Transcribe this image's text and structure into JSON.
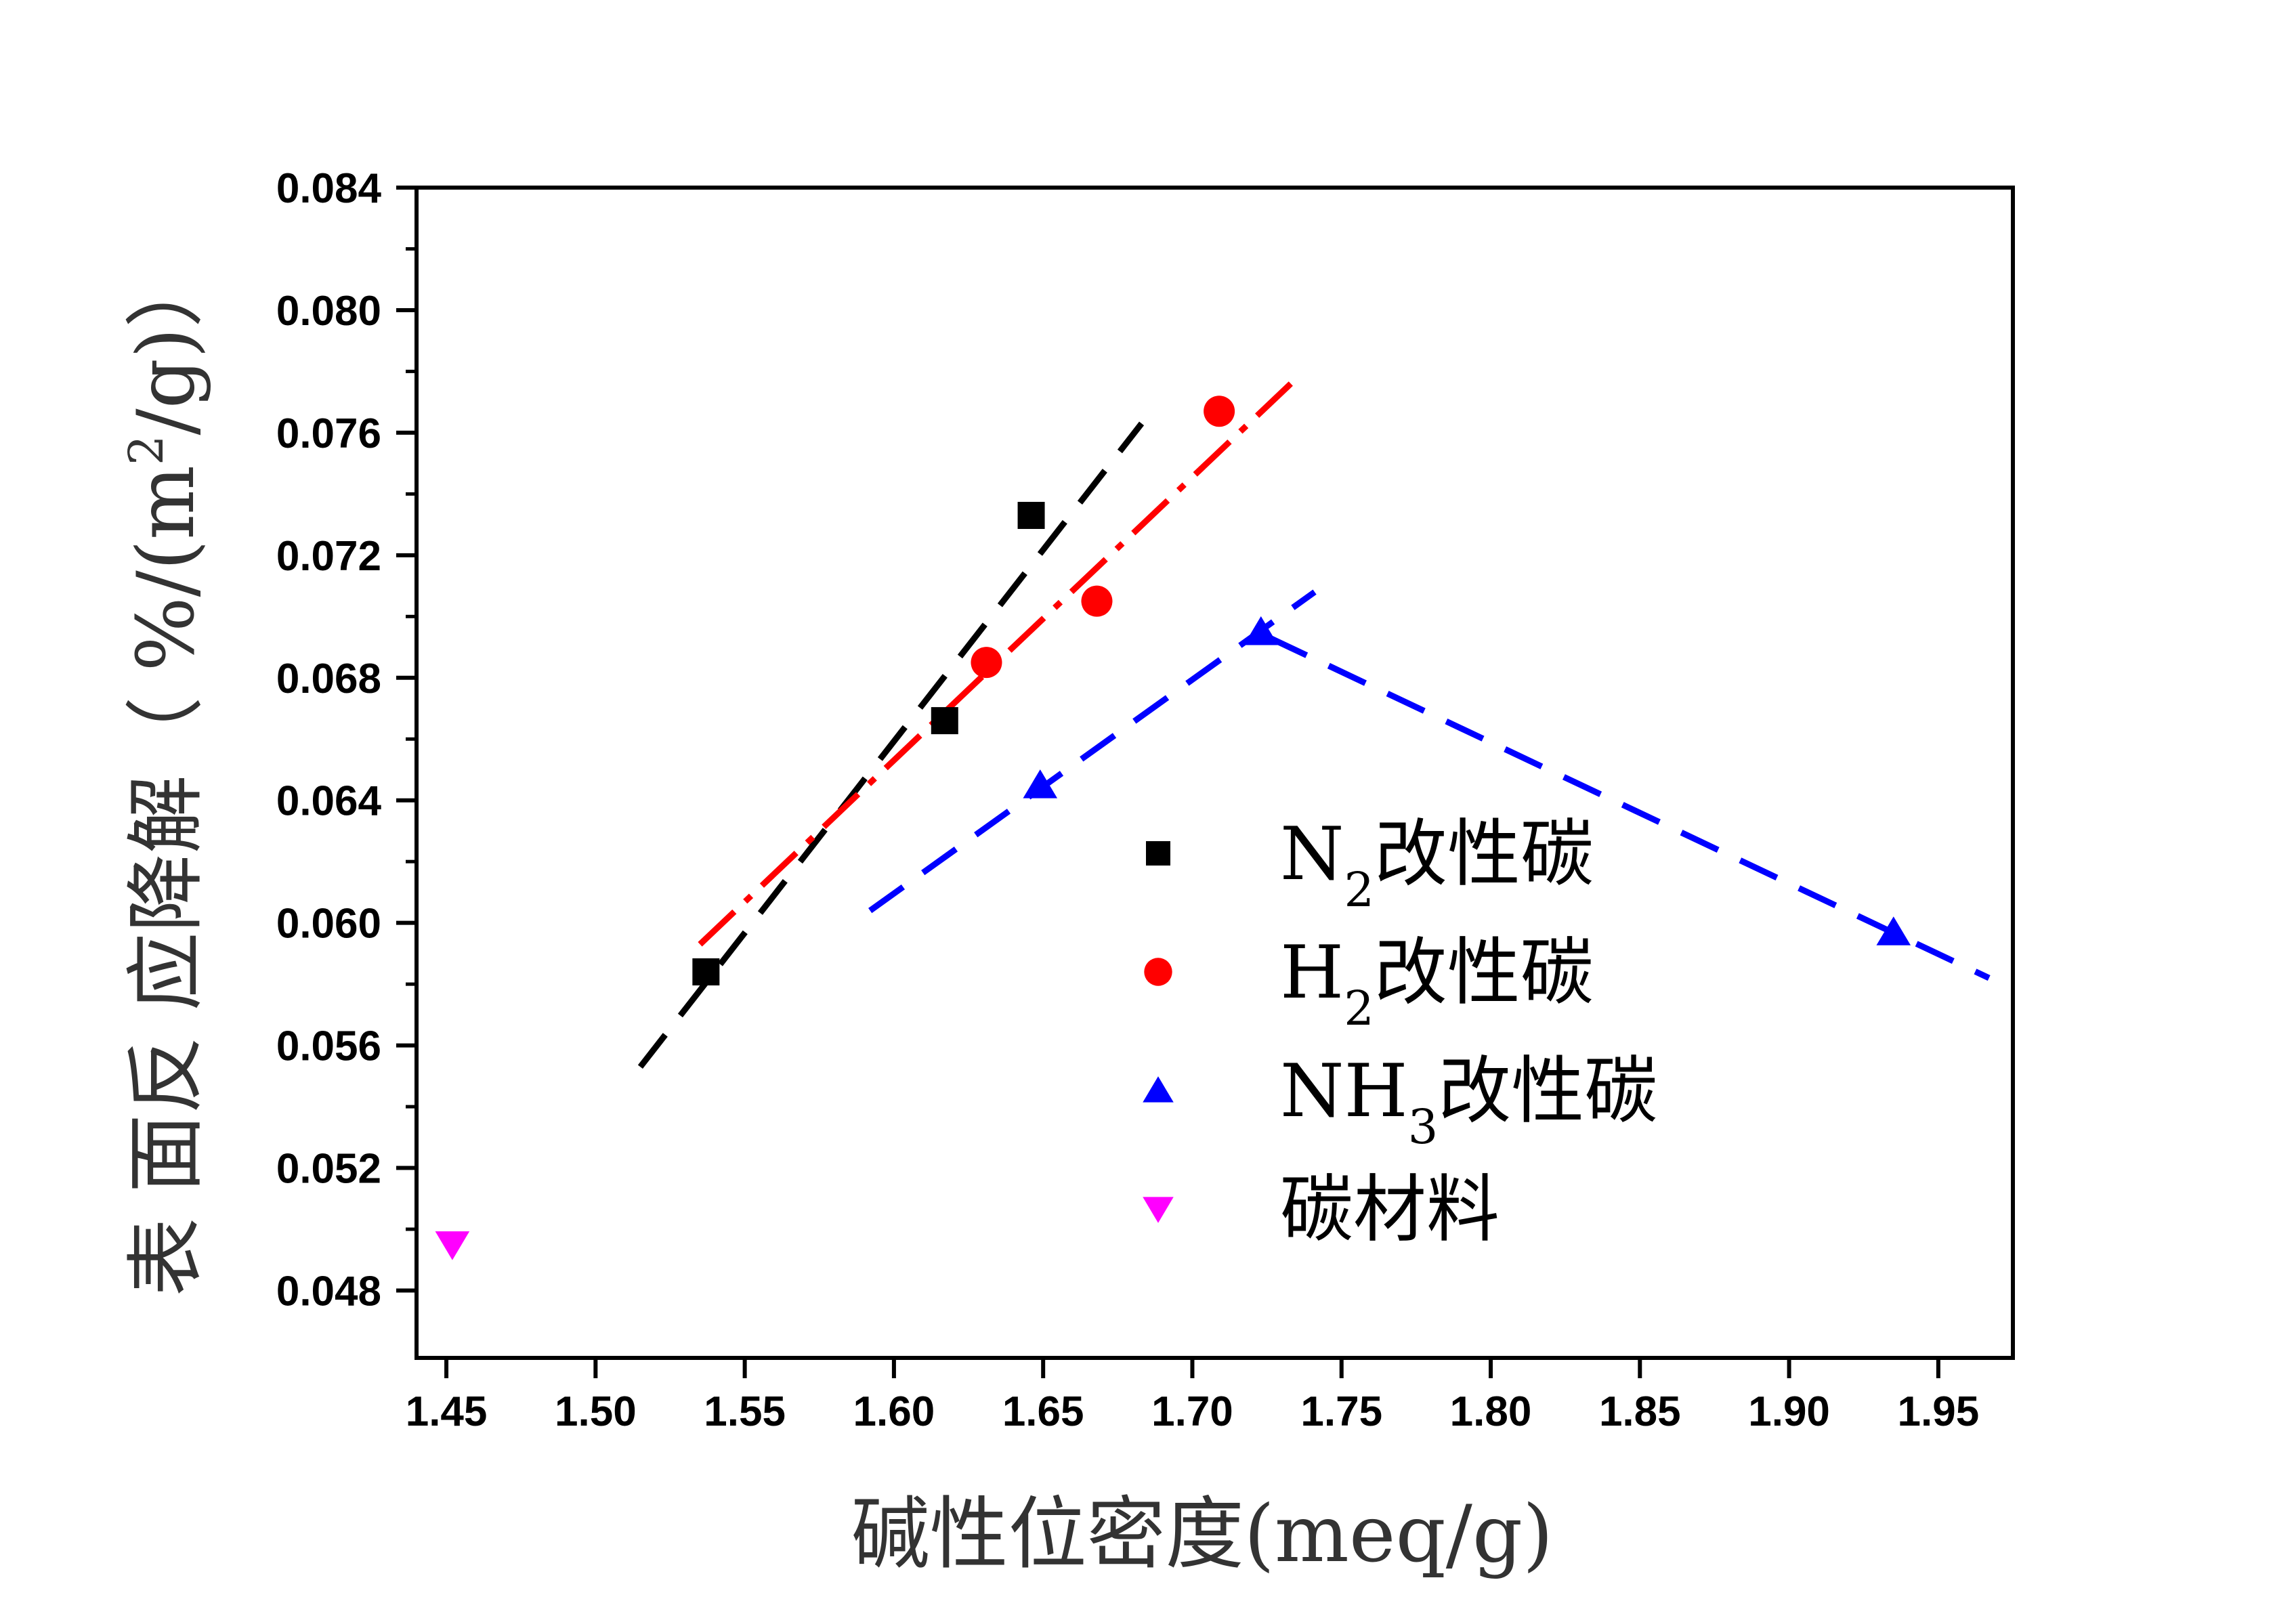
{
  "chart_data": {
    "type": "scatter",
    "xlabel": "碱性位密度(meq/g)",
    "ylabel": "表 面反 应降解（ %/(m²/g)）",
    "ylabel_parts": {
      "main": "表 面反 应降解（ %/(m",
      "sup": "2",
      "tail": "/g)）"
    },
    "xlim": [
      1.44,
      1.975
    ],
    "ylim": [
      0.0458,
      0.084
    ],
    "xticks": [
      1.45,
      1.5,
      1.55,
      1.6,
      1.65,
      1.7,
      1.75,
      1.8,
      1.85,
      1.9,
      1.95
    ],
    "xtick_labels": [
      "1.45",
      "1.50",
      "1.55",
      "1.60",
      "1.65",
      "1.70",
      "1.75",
      "1.80",
      "1.85",
      "1.90",
      "1.95"
    ],
    "yticks": [
      0.048,
      0.052,
      0.056,
      0.06,
      0.064,
      0.068,
      0.072,
      0.076,
      0.08,
      0.084
    ],
    "ytick_labels": [
      "0.048",
      "0.052",
      "0.056",
      "0.060",
      "0.064",
      "0.068",
      "0.072",
      "0.076",
      "0.080",
      "0.084"
    ],
    "legend_position": "center-right",
    "series": [
      {
        "name": "N2改性碳",
        "label_main": "N",
        "label_sub": "2",
        "label_tail": "改性碳",
        "marker": "square",
        "color": "#000000",
        "points": [
          [
            1.537,
            0.0584
          ],
          [
            1.617,
            0.0666
          ],
          [
            1.646,
            0.0733
          ]
        ]
      },
      {
        "name": "H2改性碳",
        "label_main": "H",
        "label_sub": "2",
        "label_tail": "改性碳",
        "marker": "circle",
        "color": "#ff0000",
        "points": [
          [
            1.631,
            0.0685
          ],
          [
            1.668,
            0.0705
          ],
          [
            1.709,
            0.0767
          ]
        ]
      },
      {
        "name": "NH3改性碳",
        "label_main": "NH",
        "label_sub": "3",
        "label_tail": "改性碳",
        "marker": "triangle-up",
        "color": "#0000ff",
        "points": [
          [
            1.649,
            0.0645
          ],
          [
            1.723,
            0.0695
          ],
          [
            1.935,
            0.0597
          ]
        ]
      },
      {
        "name": "碳材料",
        "label_main": "碳材料",
        "label_sub": "",
        "label_tail": "",
        "marker": "triangle-down",
        "color": "#ff00ff",
        "points": [
          [
            1.452,
            0.0495
          ]
        ]
      }
    ],
    "fit_lines": [
      {
        "series": "N2改性碳",
        "color": "#000000",
        "style": "dash",
        "from": [
          1.515,
          0.0553
        ],
        "to": [
          1.683,
          0.0763
        ]
      },
      {
        "series": "H2改性碳",
        "color": "#ff0000",
        "style": "dash-dot",
        "from": [
          1.535,
          0.0593
        ],
        "to": [
          1.733,
          0.0776
        ]
      },
      {
        "series": "NH3改性碳",
        "color": "#0000ff",
        "style": "dash",
        "from": [
          1.592,
          0.0604
        ],
        "to": [
          1.741,
          0.0708
        ]
      },
      {
        "series": "NH3改性碳",
        "color": "#0000ff",
        "style": "dash",
        "from": [
          1.726,
          0.0693
        ],
        "to": [
          1.967,
          0.0582
        ]
      }
    ]
  }
}
